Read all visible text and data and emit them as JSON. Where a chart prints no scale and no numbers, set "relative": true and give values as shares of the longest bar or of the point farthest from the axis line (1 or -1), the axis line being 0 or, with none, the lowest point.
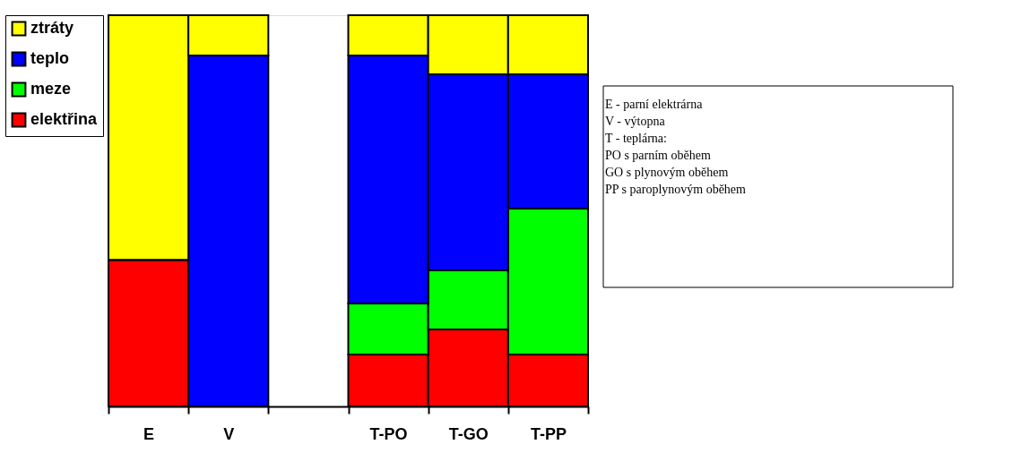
{
  "chart_data": {
    "type": "bar",
    "stacked": true,
    "relative": true,
    "legend": "left",
    "categories": [
      "E",
      "V",
      null,
      "T-PO",
      "T-GO",
      "T-PP"
    ],
    "series": [
      {
        "name": "elektřina",
        "color": "#ff0000",
        "values": [
          0.375,
          0,
          null,
          0.133,
          0.197,
          0.133
        ]
      },
      {
        "name": "meze",
        "color": "#00ff00",
        "values": [
          0,
          0,
          null,
          0.13,
          0.151,
          0.373
        ]
      },
      {
        "name": "teplo",
        "color": "#0000ff",
        "values": [
          0,
          0.897,
          null,
          0.634,
          0.501,
          0.343
        ]
      },
      {
        "name": "ztráty",
        "color": "#ffff00",
        "values": [
          0.625,
          0.103,
          null,
          0.103,
          0.151,
          0.151
        ]
      }
    ],
    "annotations": [
      "E - parní elektrárna",
      "V - výtopna",
      "T - teplárna:",
      "PO  s parním oběhem",
      "GO s plynovým oběhem",
      "PP  s paroplynovým oběhem"
    ]
  }
}
